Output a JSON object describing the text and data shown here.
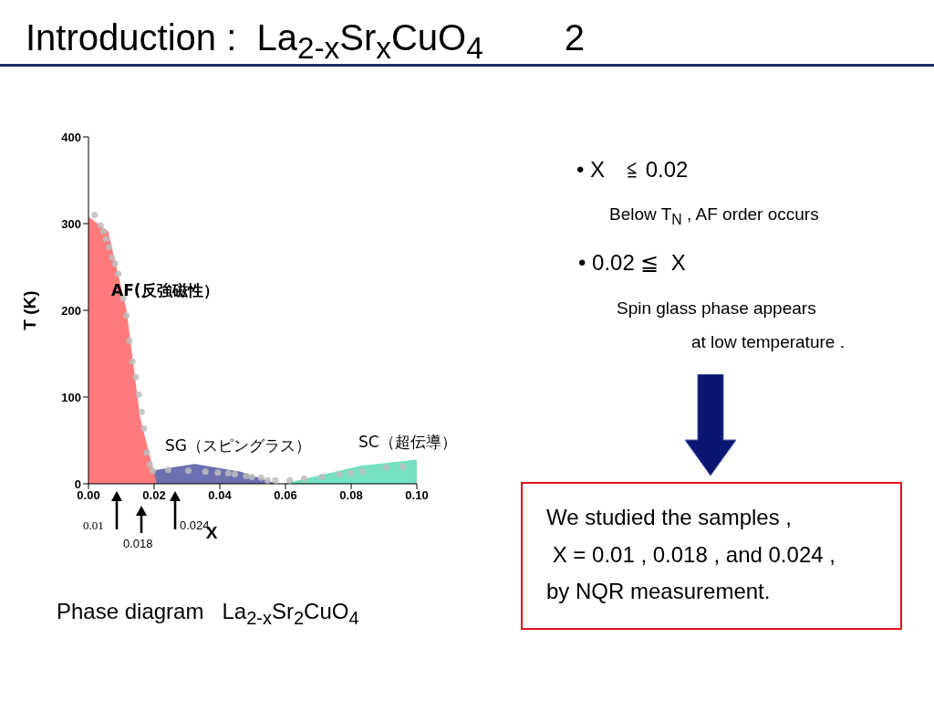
{
  "chart_data": {
    "type": "area",
    "title": "Introduction :  La$_{2-x}$Sr$_{x}$CuO$_{4}$        2",
    "xlabel": "X",
    "ylabel": "T (K)",
    "xlim": [
      0,
      0.1
    ],
    "ylim": [
      0,
      400
    ],
    "xticks": [
      {
        "value": 0,
        "label": "0.00"
      },
      {
        "value": 0.02,
        "label": "0.02"
      },
      {
        "value": 0.04,
        "label": "0.04"
      },
      {
        "value": 0.06,
        "label": "0.06"
      },
      {
        "value": 0.08,
        "label": "0.08"
      },
      {
        "value": 0.1,
        "label": "0.10"
      }
    ],
    "yticks": [
      0,
      100,
      200,
      300,
      400
    ],
    "series": [
      {
        "type": "area",
        "color": "#6d70b0",
        "x": [
          0.019,
          0.0324,
          0.0463,
          0.0574
        ],
        "values": [
          15,
          23,
          14,
          0
        ]
      },
      {
        "type": "area",
        "color": "#ff7b7b",
        "x": [
          0,
          0.006,
          0.0116,
          0.0157,
          0.0208
        ],
        "values": [
          308,
          291,
          200,
          77,
          0
        ]
      },
      {
        "type": "area",
        "color": "#76e0c2",
        "x": [
          0.0593,
          0.0833,
          0.1
        ],
        "values": [
          0,
          21,
          28
        ]
      },
      {
        "type": "scatter",
        "color": "#bdbdbd",
        "x": [
          0.0019,
          0.0037,
          0.0046,
          0.0054,
          0.0063,
          0.0072,
          0.0081,
          0.0091,
          0.0106,
          0.0116,
          0.0125,
          0.0134,
          0.0144,
          0.0153,
          0.0162,
          0.0169,
          0.0178,
          0.0187,
          0.0196,
          0.0243,
          0.0304,
          0.0356,
          0.0394,
          0.0426,
          0.0446,
          0.048,
          0.0498,
          0.0526,
          0.0546,
          0.0569,
          0.0613,
          0.0657,
          0.071,
          0.0764,
          0.0799,
          0.0835,
          0.0907,
          0.0958
        ],
        "values": [
          310,
          298,
          291,
          282,
          273,
          261,
          254,
          242,
          214,
          194,
          165,
          141,
          123,
          103,
          83,
          64,
          36,
          22,
          15,
          16,
          15,
          14,
          13,
          12,
          11,
          9,
          8,
          7,
          4,
          4,
          4,
          6,
          8,
          11,
          12,
          14,
          19,
          20
        ]
      }
    ],
    "annotations": [
      "AF(反強磁性）",
      "SG（スピングラス）",
      "SC（超伝導）",
      "0.01",
      "0.018",
      "0.024",
      "Phase diagram   La$_{2-x}$Sr$_{2}$CuO$_{4}$",
      "• X　≦ 0.02",
      "Below T$_{N}$ , AF order occurs",
      "• 0.02 ≦  X",
      "Spin glass phase appears",
      "at low temperature .",
      "We studied the samples ,",
      " X = 0.01 , 0.018 , and 0.024 ,",
      "by NQR measurement."
    ]
  }
}
